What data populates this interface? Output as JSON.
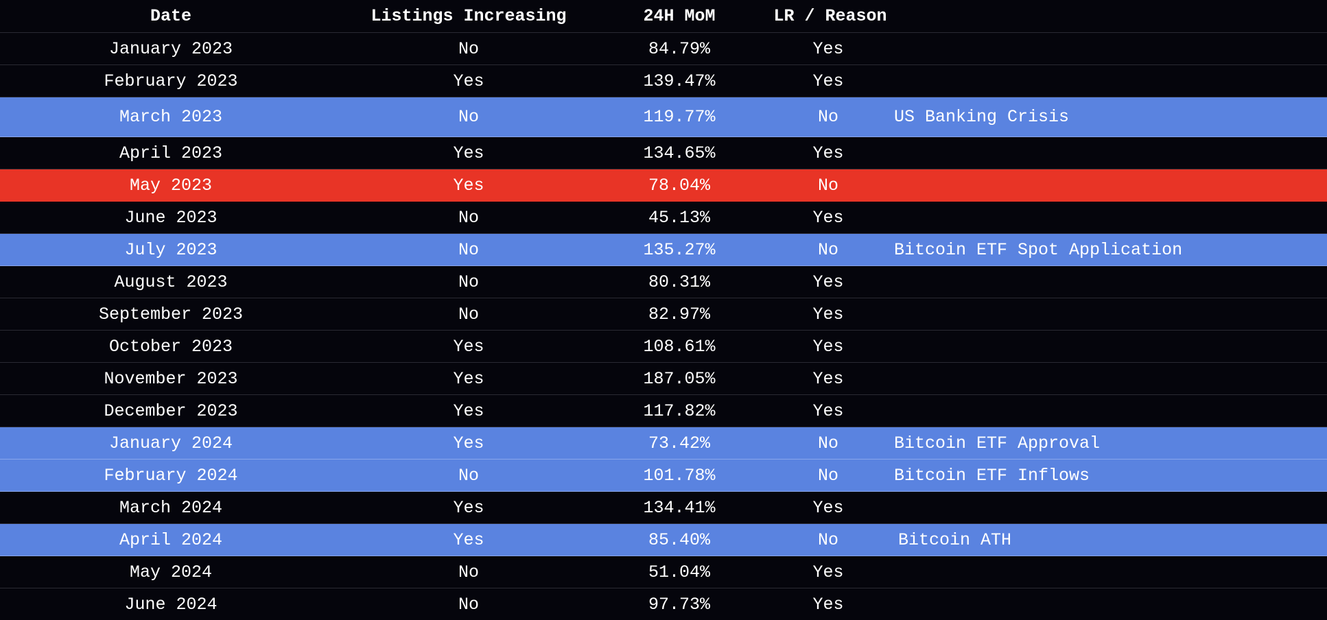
{
  "colors": {
    "background": "#05050c",
    "highlight_blue": "#5a83e0",
    "highlight_red": "#e83426",
    "text": "#ffffff"
  },
  "columns": {
    "date": "Date",
    "listings": "Listings Increasing",
    "mom": "24H MoM",
    "lr_reason": "LR / Reason"
  },
  "rows": [
    {
      "date": "January 2023",
      "listings": "No",
      "mom": "84.79%",
      "lr": "Yes",
      "reason": "",
      "highlight": "none"
    },
    {
      "date": "February 2023",
      "listings": "Yes",
      "mom": "139.47%",
      "lr": "Yes",
      "reason": "",
      "highlight": "none"
    },
    {
      "date": "March 2023",
      "listings": "No",
      "mom": "119.77%",
      "lr": "No",
      "reason": "US Banking Crisis",
      "highlight": "blue"
    },
    {
      "date": "April 2023",
      "listings": "Yes",
      "mom": "134.65%",
      "lr": "Yes",
      "reason": "",
      "highlight": "none"
    },
    {
      "date": "May 2023",
      "listings": "Yes",
      "mom": "78.04%",
      "lr": "No",
      "reason": "",
      "highlight": "red"
    },
    {
      "date": "June 2023",
      "listings": "No",
      "mom": "45.13%",
      "lr": "Yes",
      "reason": "",
      "highlight": "none"
    },
    {
      "date": "July 2023",
      "listings": "No",
      "mom": "135.27%",
      "lr": "No",
      "reason": "Bitcoin ETF Spot Application",
      "highlight": "blue"
    },
    {
      "date": "August 2023",
      "listings": "No",
      "mom": "80.31%",
      "lr": "Yes",
      "reason": "",
      "highlight": "none"
    },
    {
      "date": "September 2023",
      "listings": "No",
      "mom": "82.97%",
      "lr": "Yes",
      "reason": "",
      "highlight": "none"
    },
    {
      "date": "October 2023",
      "listings": "Yes",
      "mom": "108.61%",
      "lr": "Yes",
      "reason": "",
      "highlight": "none"
    },
    {
      "date": "November 2023",
      "listings": "Yes",
      "mom": "187.05%",
      "lr": "Yes",
      "reason": "",
      "highlight": "none"
    },
    {
      "date": "December 2023",
      "listings": "Yes",
      "mom": "117.82%",
      "lr": "Yes",
      "reason": "",
      "highlight": "none"
    },
    {
      "date": "January 2024",
      "listings": "Yes",
      "mom": "73.42%",
      "lr": "No",
      "reason": "Bitcoin ETF Approval",
      "highlight": "blue"
    },
    {
      "date": "February 2024",
      "listings": "No",
      "mom": "101.78%",
      "lr": "No",
      "reason": "Bitcoin ETF Inflows",
      "highlight": "blue"
    },
    {
      "date": "March 2024",
      "listings": "Yes",
      "mom": "134.41%",
      "lr": "Yes",
      "reason": "",
      "highlight": "none"
    },
    {
      "date": "April 2024",
      "listings": "Yes",
      "mom": "85.40%",
      "lr": "No",
      "reason": "Bitcoin ATH",
      "highlight": "blue"
    },
    {
      "date": "May 2024",
      "listings": "No",
      "mom": "51.04%",
      "lr": "Yes",
      "reason": "",
      "highlight": "none"
    },
    {
      "date": "June 2024",
      "listings": "No",
      "mom": "97.73%",
      "lr": "Yes",
      "reason": "",
      "highlight": "none"
    }
  ]
}
